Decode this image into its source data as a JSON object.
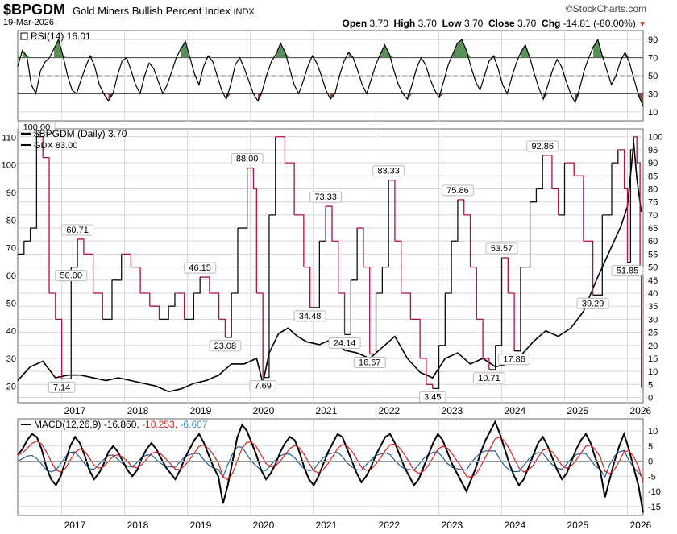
{
  "header": {
    "symbol": "$BPGDM",
    "name": "Gold Miners Bullish Percent Index",
    "exchange": "INDX",
    "date": "19-Mar-2026",
    "logo": "©StockCharts.com",
    "open_label": "Open",
    "open": "3.70",
    "high_label": "High",
    "high": "3.70",
    "low_label": "Low",
    "low": "3.70",
    "close_label": "Close",
    "close": "3.70",
    "chg_label": "Chg",
    "chg": "-14.81 (-80.00%)"
  },
  "colors": {
    "bpgdm": "#b5103a",
    "gdx": "#000000",
    "rsi_up": "#5a8f5a",
    "rsi_down": "#8b4a4a",
    "macd_line": "#000000",
    "macd_signal": "#d42020",
    "macd_hist": "#1f5f8b",
    "grid": "#d8d8d8"
  },
  "chart_data": [
    {
      "type": "line",
      "title": "RSI(14) 16.01",
      "label": "RSI(14)",
      "last_value": "16.01",
      "ylim": [
        0,
        100
      ],
      "y_ticks": [
        "90",
        "70",
        "50",
        "30",
        "10"
      ],
      "levels": [
        70,
        30
      ],
      "midline": 50,
      "x_start": 2016.3,
      "x_end": 2026.25,
      "values": [
        60,
        78,
        72,
        40,
        30,
        55,
        65,
        70,
        80,
        90,
        72,
        50,
        34,
        30,
        46,
        60,
        72,
        60,
        40,
        30,
        22,
        30,
        50,
        66,
        70,
        56,
        40,
        30,
        50,
        64,
        58,
        44,
        30,
        40,
        55,
        70,
        80,
        88,
        70,
        52,
        40,
        60,
        72,
        66,
        50,
        34,
        24,
        40,
        62,
        70,
        58,
        44,
        30,
        22,
        34,
        52,
        66,
        74,
        86,
        76,
        58,
        40,
        30,
        44,
        60,
        72,
        64,
        50,
        34,
        24,
        30,
        50,
        66,
        76,
        70,
        56,
        40,
        30,
        46,
        62,
        74,
        84,
        74,
        56,
        40,
        30,
        24,
        40,
        58,
        70,
        62,
        46,
        34,
        26,
        44,
        62,
        74,
        86,
        90,
        78,
        60,
        44,
        34,
        50,
        66,
        72,
        58,
        40,
        30,
        48,
        64,
        76,
        84,
        70,
        52,
        36,
        24,
        40,
        56,
        68,
        60,
        44,
        30,
        20,
        36,
        56,
        70,
        82,
        90,
        72,
        56,
        40,
        50,
        66,
        76,
        64,
        46,
        28,
        16
      ]
    },
    {
      "type": "line",
      "title": "$BPGDM (Daily) 3.70",
      "series": [
        {
          "name": "$BPGDM (Daily)",
          "last_value": "3.70",
          "axis": "right",
          "ylim": [
            -2,
            103
          ],
          "x": [
            2016.3,
            2016.4,
            2016.5,
            2016.6,
            2016.7,
            2016.8,
            2016.9,
            2017.0,
            2017.15,
            2017.25,
            2017.35,
            2017.5,
            2017.65,
            2017.8,
            2017.95,
            2018.1,
            2018.25,
            2018.4,
            2018.55,
            2018.7,
            2018.8,
            2018.95,
            2019.1,
            2019.2,
            2019.35,
            2019.5,
            2019.6,
            2019.7,
            2019.8,
            2019.95,
            2020.05,
            2020.1,
            2020.2,
            2020.3,
            2020.4,
            2020.55,
            2020.7,
            2020.85,
            2020.95,
            2021.1,
            2021.2,
            2021.3,
            2021.4,
            2021.5,
            2021.6,
            2021.7,
            2021.8,
            2021.9,
            2022.0,
            2022.1,
            2022.2,
            2022.3,
            2022.4,
            2022.55,
            2022.7,
            2022.8,
            2022.9,
            2023.0,
            2023.1,
            2023.2,
            2023.3,
            2023.4,
            2023.5,
            2023.6,
            2023.7,
            2023.8,
            2023.9,
            2024.0,
            2024.1,
            2024.2,
            2024.3,
            2024.45,
            2024.55,
            2024.65,
            2024.8,
            2024.9,
            2025.0,
            2025.15,
            2025.3,
            2025.45,
            2025.6,
            2025.75,
            2025.85,
            2025.95,
            2026.0,
            2026.05,
            2026.1,
            2026.15,
            2026.2,
            2026.22
          ],
          "values": [
            55,
            60,
            65,
            100,
            92,
            40,
            30,
            7.14,
            50,
            60.71,
            55,
            40,
            30,
            45,
            55,
            50,
            40,
            35,
            30,
            35,
            40,
            30,
            40,
            46.15,
            40,
            30,
            23.08,
            40,
            65,
            88,
            80,
            40,
            7.69,
            70,
            100,
            90,
            70,
            50,
            34.48,
            60,
            73.33,
            60,
            40,
            24.14,
            45,
            65,
            50,
            16.67,
            40,
            50,
            83.33,
            60,
            40,
            30,
            15,
            5,
            3.45,
            20,
            40,
            60,
            75.86,
            70,
            50,
            30,
            15,
            10.71,
            20,
            53.57,
            40,
            17.86,
            50,
            75,
            80,
            92.86,
            80,
            70,
            90,
            85,
            60,
            39.29,
            70,
            90,
            95,
            80,
            51.85,
            95,
            100,
            90,
            50,
            3.7
          ]
        },
        {
          "name": "GDX",
          "last_value": "83.00",
          "axis": "left",
          "ylim": [
            14,
            113
          ],
          "x": [
            2016.3,
            2016.5,
            2016.7,
            2016.9,
            2017.1,
            2017.3,
            2017.5,
            2017.7,
            2017.9,
            2018.1,
            2018.3,
            2018.5,
            2018.7,
            2018.9,
            2019.1,
            2019.3,
            2019.5,
            2019.7,
            2019.9,
            2020.1,
            2020.2,
            2020.3,
            2020.45,
            2020.6,
            2020.75,
            2020.9,
            2021.1,
            2021.3,
            2021.5,
            2021.7,
            2021.9,
            2022.1,
            2022.3,
            2022.5,
            2022.7,
            2022.9,
            2023.1,
            2023.3,
            2023.5,
            2023.7,
            2023.9,
            2024.1,
            2024.3,
            2024.5,
            2024.7,
            2024.9,
            2025.1,
            2025.3,
            2025.5,
            2025.7,
            2025.9,
            2026.0,
            2026.1,
            2026.15,
            2026.22
          ],
          "values": [
            22,
            27,
            29,
            23,
            24,
            24,
            23,
            22,
            23,
            22,
            21,
            20,
            18,
            19,
            21,
            22,
            24,
            28,
            28,
            30,
            21,
            32,
            39,
            41,
            38,
            36,
            35,
            37,
            33,
            32,
            30,
            34,
            38,
            30,
            25,
            23,
            30,
            32,
            28,
            30,
            27,
            28,
            31,
            36,
            40,
            38,
            41,
            47,
            58,
            68,
            78,
            85,
            108,
            95,
            83
          ]
        }
      ],
      "annotations": [
        "60.71",
        "7.14",
        "46.15",
        "23.08",
        "88.00",
        "7.69",
        "34.48",
        "24.14",
        "73.33",
        "16.67",
        "50.00",
        "83.33",
        "3.45",
        "75.86",
        "10.71",
        "53.57",
        "17.86",
        "92.86",
        "39.29",
        "51.85",
        "100.00"
      ],
      "left_ticks": [
        "110",
        "100",
        "90",
        "80",
        "70",
        "60",
        "50",
        "40",
        "30",
        "20"
      ],
      "right_ticks": [
        "100",
        "95",
        "90",
        "85",
        "80",
        "75",
        "70",
        "65",
        "60",
        "55",
        "50",
        "45",
        "40",
        "35",
        "30",
        "25",
        "20",
        "15",
        "10",
        "5",
        "0"
      ],
      "x_tick_labels": [
        "2017",
        "2018",
        "2019",
        "2020",
        "2021",
        "2022",
        "2023",
        "2024",
        "2025",
        "2026"
      ]
    },
    {
      "type": "line",
      "title": "MACD(12,26,9) -16.860, -10.253, -6.607",
      "label": "MACD(12,26,9)",
      "macd_value": "-16.860",
      "signal_value": "-10.253",
      "hist_value": "-6.607",
      "ylim": [
        -18,
        14
      ],
      "y_ticks": [
        "10",
        "5",
        "0",
        "-5",
        "-10",
        "-15"
      ],
      "x_start": 2016.3,
      "x_end": 2026.25,
      "macd": [
        2,
        4,
        7,
        9,
        8,
        4,
        -2,
        -6,
        -8,
        -5,
        0,
        5,
        8,
        6,
        2,
        -3,
        -6,
        -4,
        -1,
        3,
        5,
        3,
        0,
        -3,
        -5,
        -3,
        1,
        4,
        6,
        4,
        1,
        -2,
        -4,
        -6,
        -3,
        1,
        4,
        7,
        9,
        6,
        2,
        -2,
        -5,
        -14,
        -8,
        0,
        8,
        12,
        10,
        6,
        2,
        -3,
        -6,
        -4,
        -1,
        3,
        6,
        8,
        7,
        3,
        -2,
        -6,
        -8,
        -5,
        -1,
        3,
        6,
        9,
        8,
        4,
        0,
        -4,
        -7,
        -5,
        -2,
        2,
        5,
        8,
        9,
        6,
        2,
        -2,
        -5,
        -8,
        -6,
        -2,
        2,
        6,
        9,
        7,
        3,
        -1,
        -4,
        -7,
        -10,
        -6,
        -2,
        3,
        7,
        10,
        13,
        9,
        4,
        -1,
        -5,
        -8,
        -6,
        -2,
        2,
        6,
        8,
        5,
        1,
        -3,
        -6,
        -4,
        0,
        4,
        7,
        9,
        6,
        1,
        -3,
        -12,
        -6,
        0,
        5,
        9,
        4,
        -2,
        -8,
        -17
      ],
      "x_tick_labels": [
        "2017",
        "2018",
        "2019",
        "2020",
        "2021",
        "2022",
        "2023",
        "2024",
        "2025",
        "2026"
      ]
    }
  ]
}
